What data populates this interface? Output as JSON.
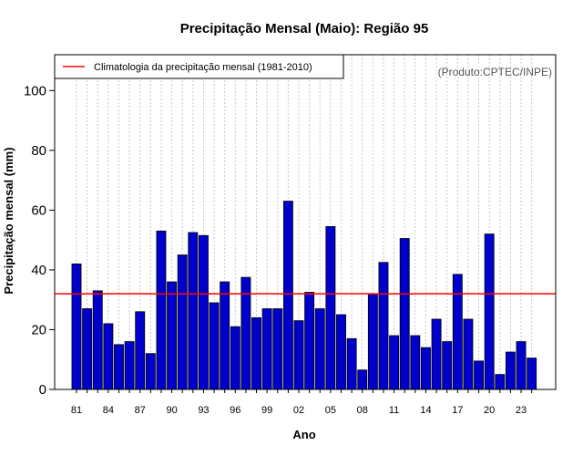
{
  "chart_data": {
    "type": "bar",
    "title": "Precipitação Mensal (Maio): Região 95",
    "xlabel": "Ano",
    "ylabel": "Precipitação mensal (mm)",
    "source": "(Produto:CPTEC/INPE)",
    "ylim": [
      0,
      112
    ],
    "yticks": [
      0,
      20,
      40,
      60,
      80,
      100
    ],
    "categories": [
      "1981",
      "1982",
      "1983",
      "1984",
      "1985",
      "1986",
      "1987",
      "1988",
      "1989",
      "1990",
      "1991",
      "1992",
      "1993",
      "1994",
      "1995",
      "1996",
      "1997",
      "1998",
      "1999",
      "2000",
      "2001",
      "2002",
      "2003",
      "2004",
      "2005",
      "2006",
      "2007",
      "2008",
      "2009",
      "2010",
      "2011",
      "2012",
      "2013",
      "2014",
      "2015",
      "2016",
      "2017",
      "2018",
      "2019",
      "2020",
      "2021",
      "2022",
      "2023",
      "2024"
    ],
    "xtick_labels": [
      "81",
      "84",
      "87",
      "90",
      "93",
      "96",
      "99",
      "02",
      "05",
      "08",
      "11",
      "14",
      "17",
      "20",
      "23"
    ],
    "xtick_every": 3,
    "values": [
      42,
      27,
      33,
      22,
      15,
      16,
      26,
      12,
      53,
      36,
      45,
      52.5,
      51.5,
      29,
      36,
      21,
      37.5,
      24,
      27,
      27,
      63,
      23,
      32.5,
      27,
      54.5,
      25,
      17,
      6.5,
      32,
      42.5,
      18,
      50.5,
      18,
      14,
      23.5,
      16,
      38.5,
      23.5,
      9.5,
      52,
      5,
      12.5,
      16,
      10.5
    ],
    "bar_color": "#0000cc",
    "climatology": {
      "label": "Climatologia da precipitação mensal (1981-2010)",
      "value": 32,
      "color": "#ff0000"
    },
    "grid": "vertical dotted",
    "legend_position": "top-left"
  }
}
